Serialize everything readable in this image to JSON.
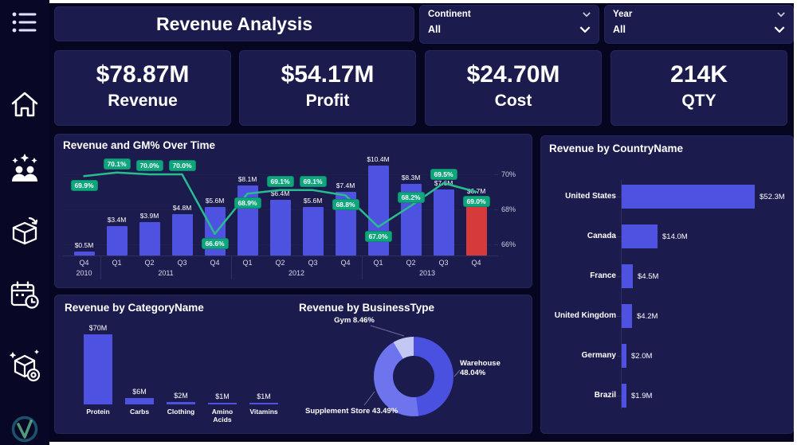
{
  "header": {
    "title": "Revenue Analysis"
  },
  "filters": [
    {
      "label": "Continent",
      "value": "All"
    },
    {
      "label": "Year",
      "value": "All"
    }
  ],
  "kpis": [
    {
      "value": "$78.87M",
      "label": "Revenue"
    },
    {
      "value": "$54.17M",
      "label": "Profit"
    },
    {
      "value": "$24.70M",
      "label": "Cost"
    },
    {
      "value": "214K",
      "label": "QTY"
    }
  ],
  "icons": {
    "sidebar": [
      "menu-list-icon",
      "home-icon",
      "team-icon",
      "returns-box-icon",
      "calendar-clock-icon",
      "product-settings-icon",
      "brand-logo"
    ],
    "filter": "chevron-down-icon"
  },
  "colors": {
    "background": "#060620",
    "card": "#1b1b4e",
    "bar_blue": "#4d52e0",
    "bar_red": "#d63a3a",
    "line_green": "#29bd8d",
    "badge_green": "#0fa57d"
  },
  "chart_data": [
    {
      "id": "revenue_gm_over_time",
      "type": "bar",
      "subtype": "combo-bar-line",
      "title": "Revenue and GM% Over Time",
      "categories": [
        "Q4",
        "Q1",
        "Q2",
        "Q3",
        "Q4",
        "Q1",
        "Q2",
        "Q3",
        "Q4",
        "Q1",
        "Q2",
        "Q3",
        "Q4"
      ],
      "year_groups": [
        {
          "label": "2010",
          "span": [
            0,
            0
          ]
        },
        {
          "label": "2011",
          "span": [
            1,
            4
          ]
        },
        {
          "label": "2012",
          "span": [
            5,
            8
          ]
        },
        {
          "label": "2013",
          "span": [
            9,
            12
          ]
        }
      ],
      "series": [
        {
          "name": "Revenue",
          "type": "bar",
          "unit": "$M",
          "values": [
            0.5,
            3.4,
            3.9,
            4.8,
            5.6,
            8.1,
            6.4,
            5.6,
            7.4,
            10.4,
            8.3,
            7.6,
            6.7
          ],
          "labels": [
            "$0.5M",
            "$3.4M",
            "$3.9M",
            "$4.8M",
            "$5.6M",
            "$8.1M",
            "$6.4M",
            "$5.6M",
            "$7.4M",
            "$10.4M",
            "$8.3M",
            "$7.6M",
            "$6.7M"
          ]
        },
        {
          "name": "GM%",
          "type": "line",
          "values": [
            69.9,
            70.1,
            70.0,
            70.0,
            66.6,
            68.9,
            69.1,
            69.1,
            68.8,
            67.0,
            68.2,
            69.5,
            69.0
          ],
          "labels": [
            "69.9%",
            "70.1%",
            "70.0%",
            "70.0%",
            "66.6%",
            "68.9%",
            "69.1%",
            "69.1%",
            "68.8%",
            "67.0%",
            "68.2%",
            "69.5%",
            "69.0%"
          ],
          "label_side": [
            "below",
            "above",
            "above",
            "above",
            "below",
            "below",
            "above",
            "above",
            "below",
            "below",
            "above",
            "above",
            "below"
          ]
        }
      ],
      "bar_highlight_index": 12,
      "y2_ticks": [
        "70%",
        "68%",
        "66%"
      ],
      "y2_range": [
        66,
        70.5
      ],
      "colors": {
        "bar": "#4d52e0",
        "highlight": "#d63a3a",
        "line": "#29bd8d"
      }
    },
    {
      "id": "revenue_by_country",
      "type": "bar",
      "orientation": "horizontal",
      "title": "Revenue by CountryName",
      "categories": [
        "United States",
        "Canada",
        "France",
        "United Kingdom",
        "Germany",
        "Brazil"
      ],
      "values": [
        52.3,
        14.0,
        4.5,
        4.2,
        2.0,
        1.9
      ],
      "labels": [
        "$52.3M",
        "$14.0M",
        "$4.5M",
        "$4.2M",
        "$2.0M",
        "$1.9M"
      ],
      "unit": "$M"
    },
    {
      "id": "revenue_by_category",
      "type": "bar",
      "orientation": "vertical",
      "title": "Revenue by CategoryName",
      "categories": [
        "Protein",
        "Carbs",
        "Clothing",
        "Amino Acids",
        "Vitamins"
      ],
      "values": [
        70,
        6,
        2,
        1,
        1
      ],
      "labels": [
        "$70M",
        "$6M",
        "$2M",
        "$1M",
        "$1M"
      ],
      "unit": "$M"
    },
    {
      "id": "revenue_by_businesstype",
      "type": "pie",
      "subtype": "donut",
      "title": "Revenue by BusinessType",
      "slices": [
        {
          "label": "Warehouse",
          "pct": 48.04,
          "display": "Warehouse 48.04%",
          "color": "#4a50e0",
          "label_pos": "right"
        },
        {
          "label": "Supplement Store",
          "pct": 43.49,
          "display": "Supplement Store 43.49%",
          "color": "#6e74ee",
          "label_pos": "bottom-left"
        },
        {
          "label": "Gym",
          "pct": 8.46,
          "display": "Gym 8.46%",
          "color": "#c3c7f4",
          "label_pos": "top"
        }
      ]
    }
  ]
}
